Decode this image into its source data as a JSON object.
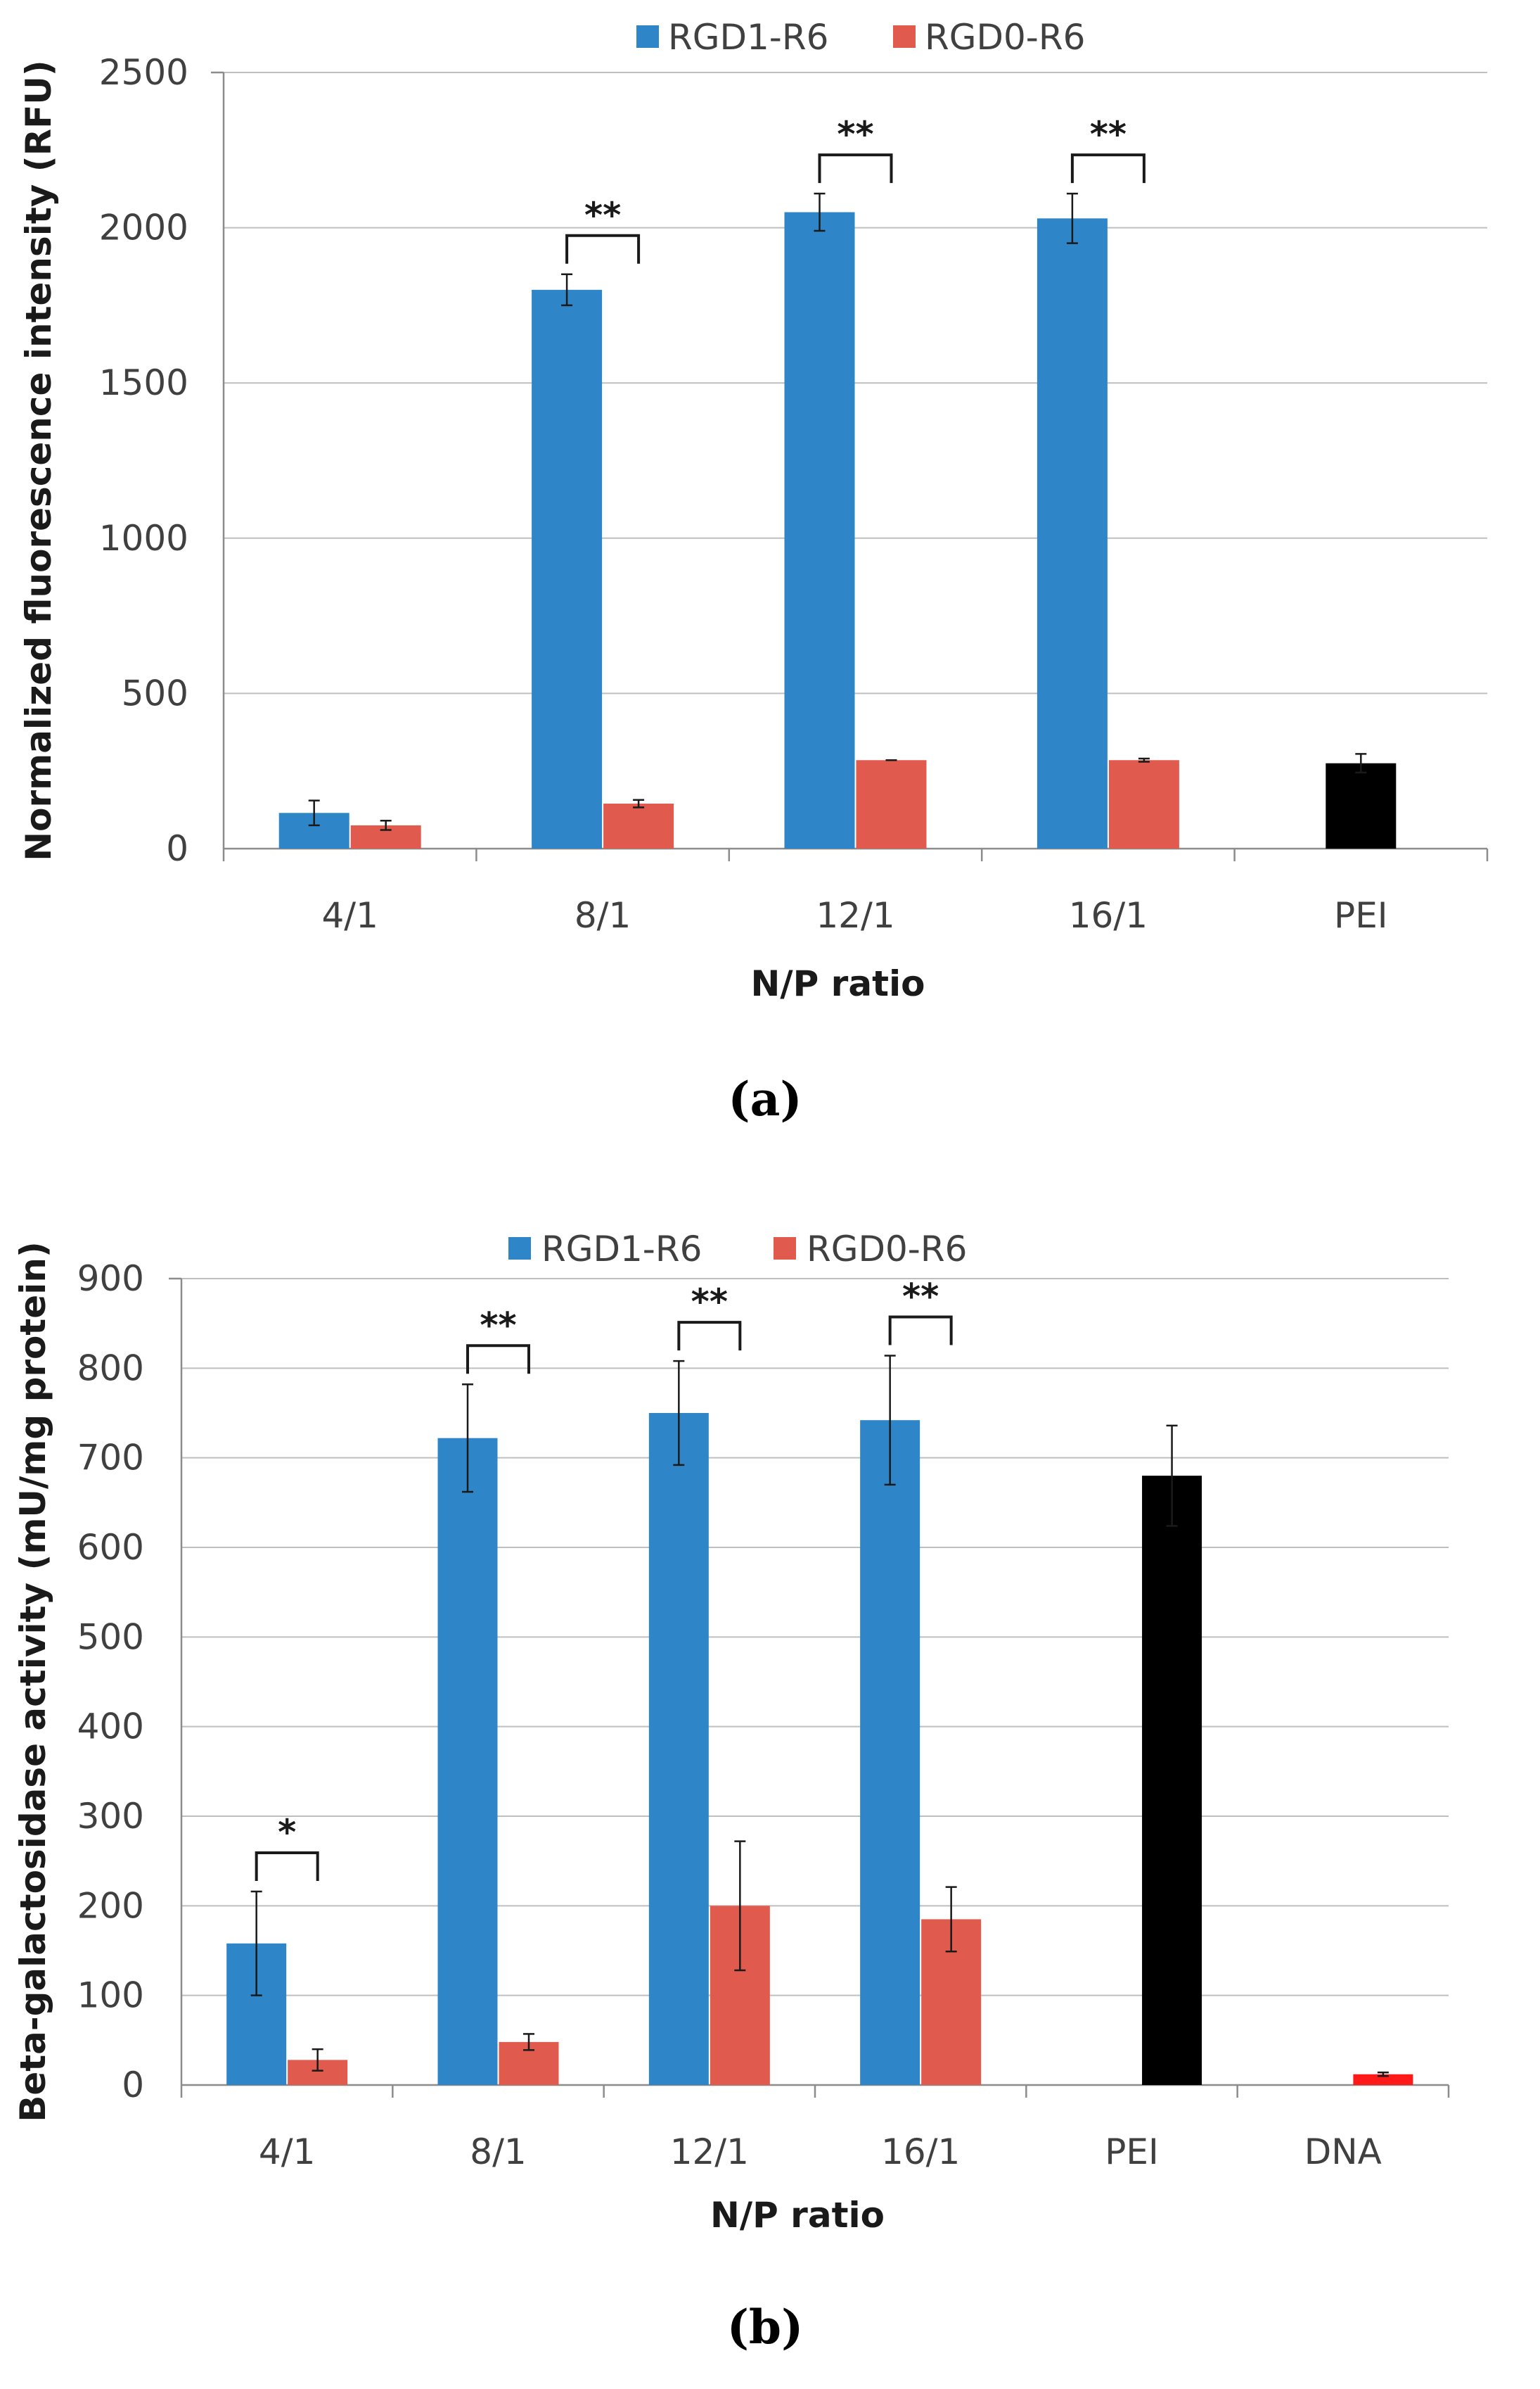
{
  "chart_data": [
    {
      "type": "bar",
      "panel_label": "(a)",
      "title": "",
      "xlabel": "N/P ratio",
      "ylabel": "Normalized fluorescence intensity (RFU)",
      "ylim": [
        0,
        2500
      ],
      "yticks": [
        "0",
        "500",
        "1000",
        "1500",
        "2000",
        "2500"
      ],
      "grid": true,
      "legend_position": "top-center",
      "categories": [
        "4/1",
        "8/1",
        "12/1",
        "16/1",
        "PEI"
      ],
      "series": [
        {
          "name": "RGD1-R6",
          "color": "#2E86C8",
          "values": [
            115,
            1800,
            2050,
            2030,
            null
          ],
          "errors": [
            40,
            50,
            60,
            80,
            null
          ]
        },
        {
          "name": "RGD0-R6",
          "color": "#E05A4E",
          "values": [
            75,
            145,
            285,
            285,
            null
          ],
          "errors": [
            15,
            12,
            0,
            5,
            null
          ]
        },
        {
          "name": "PEI",
          "show_in_legend": false,
          "color": "#000000",
          "values": [
            null,
            null,
            null,
            null,
            275
          ],
          "errors": [
            null,
            null,
            null,
            null,
            30
          ]
        }
      ],
      "significance": [
        {
          "category": "8/1",
          "label": "**"
        },
        {
          "category": "12/1",
          "label": "**"
        },
        {
          "category": "16/1",
          "label": "**"
        }
      ]
    },
    {
      "type": "bar",
      "panel_label": "(b)",
      "title": "",
      "xlabel": "N/P ratio",
      "ylabel": "Beta-galactosidase  activity  (mU/mg protein)",
      "ylim": [
        0,
        900
      ],
      "yticks": [
        "0",
        "100",
        "200",
        "300",
        "400",
        "500",
        "600",
        "700",
        "800",
        "900"
      ],
      "grid": true,
      "legend_position": "top-center",
      "categories": [
        "4/1",
        "8/1",
        "12/1",
        "16/1",
        "PEI",
        "DNA"
      ],
      "series": [
        {
          "name": "RGD1-R6",
          "color": "#2E86C8",
          "values": [
            158,
            722,
            750,
            742,
            null,
            null
          ],
          "errors": [
            58,
            60,
            58,
            72,
            null,
            null
          ]
        },
        {
          "name": "RGD0-R6",
          "color": "#E05A4E",
          "values": [
            28,
            48,
            200,
            185,
            null,
            null
          ],
          "errors": [
            12,
            9,
            72,
            36,
            null,
            null
          ]
        },
        {
          "name": "PEI",
          "show_in_legend": false,
          "color": "#000000",
          "values": [
            null,
            null,
            null,
            null,
            680,
            null
          ],
          "errors": [
            null,
            null,
            null,
            null,
            56,
            null
          ]
        },
        {
          "name": "DNA",
          "show_in_legend": false,
          "color": "#FF1A1A",
          "values": [
            null,
            null,
            null,
            null,
            null,
            12
          ],
          "errors": [
            null,
            null,
            null,
            null,
            null,
            2
          ]
        }
      ],
      "significance": [
        {
          "category": "4/1",
          "label": "*"
        },
        {
          "category": "8/1",
          "label": "**"
        },
        {
          "category": "12/1",
          "label": "**"
        },
        {
          "category": "16/1",
          "label": "**"
        }
      ]
    }
  ]
}
